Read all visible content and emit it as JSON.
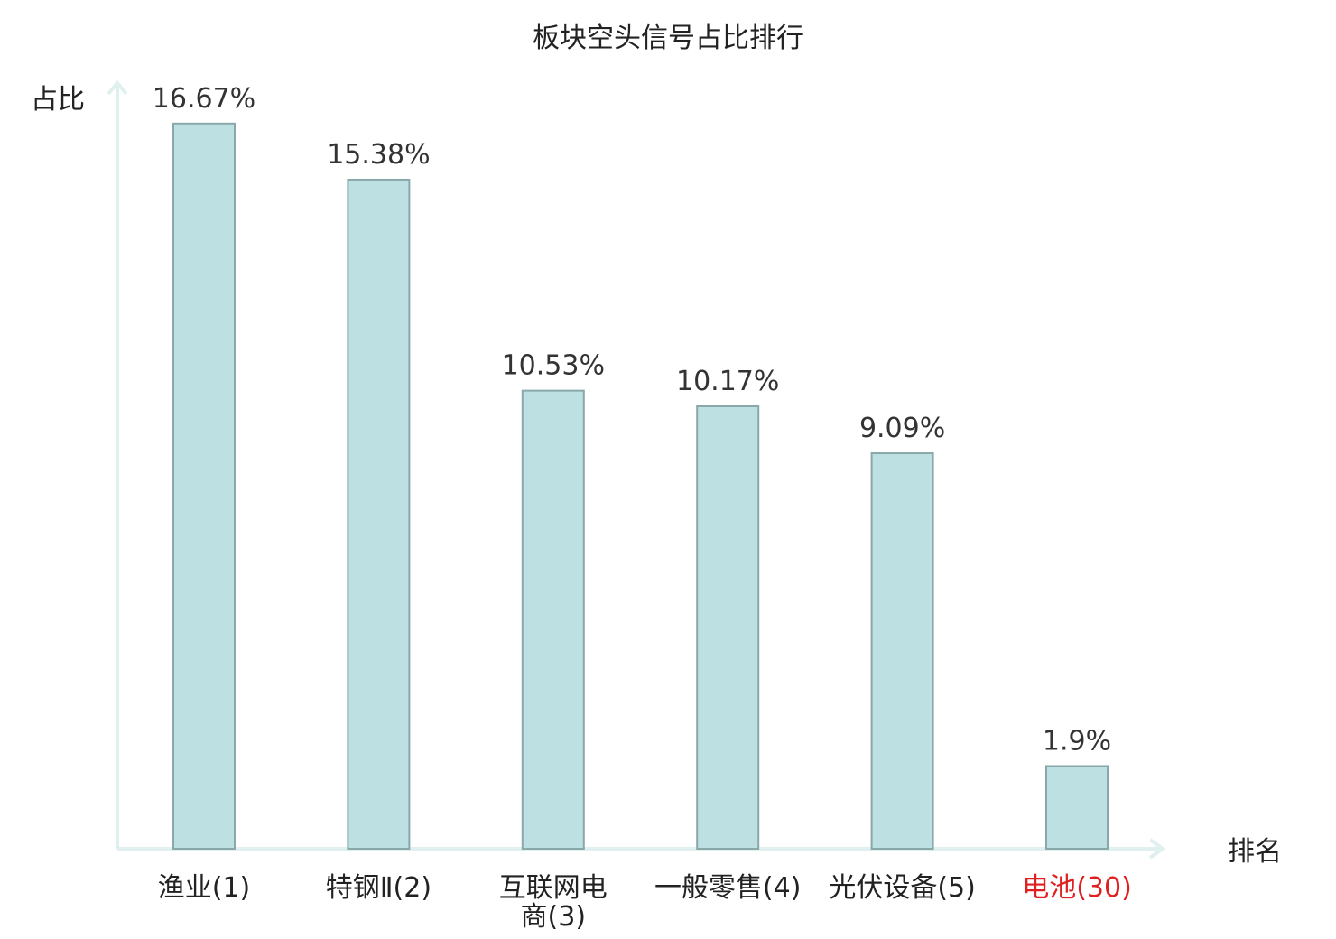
{
  "chart_data": {
    "type": "bar",
    "title": "板块空头信号占比排行",
    "ylabel": "占比",
    "xlabel": "排名",
    "categories": [
      [
        "渔业(1)"
      ],
      [
        "特钢Ⅱ(2)"
      ],
      [
        "互联网电",
        "商(3)"
      ],
      [
        "一般零售(4)"
      ],
      [
        "光伏设备(5)"
      ],
      [
        "电池(30)"
      ]
    ],
    "values": [
      16.67,
      15.38,
      10.53,
      10.17,
      9.09,
      1.9
    ],
    "value_labels": [
      "16.67%",
      "15.38%",
      "10.53%",
      "10.17%",
      "9.09%",
      "1.9%"
    ],
    "highlight_index": 5,
    "ylim": [
      0,
      17.6
    ],
    "grid": false,
    "colors": {
      "bar_fill": "#bde0e3",
      "bar_stroke": "#8aa8aa",
      "axis": "#dff0ee",
      "text": "#222222",
      "highlight_text": "#e02020"
    }
  }
}
